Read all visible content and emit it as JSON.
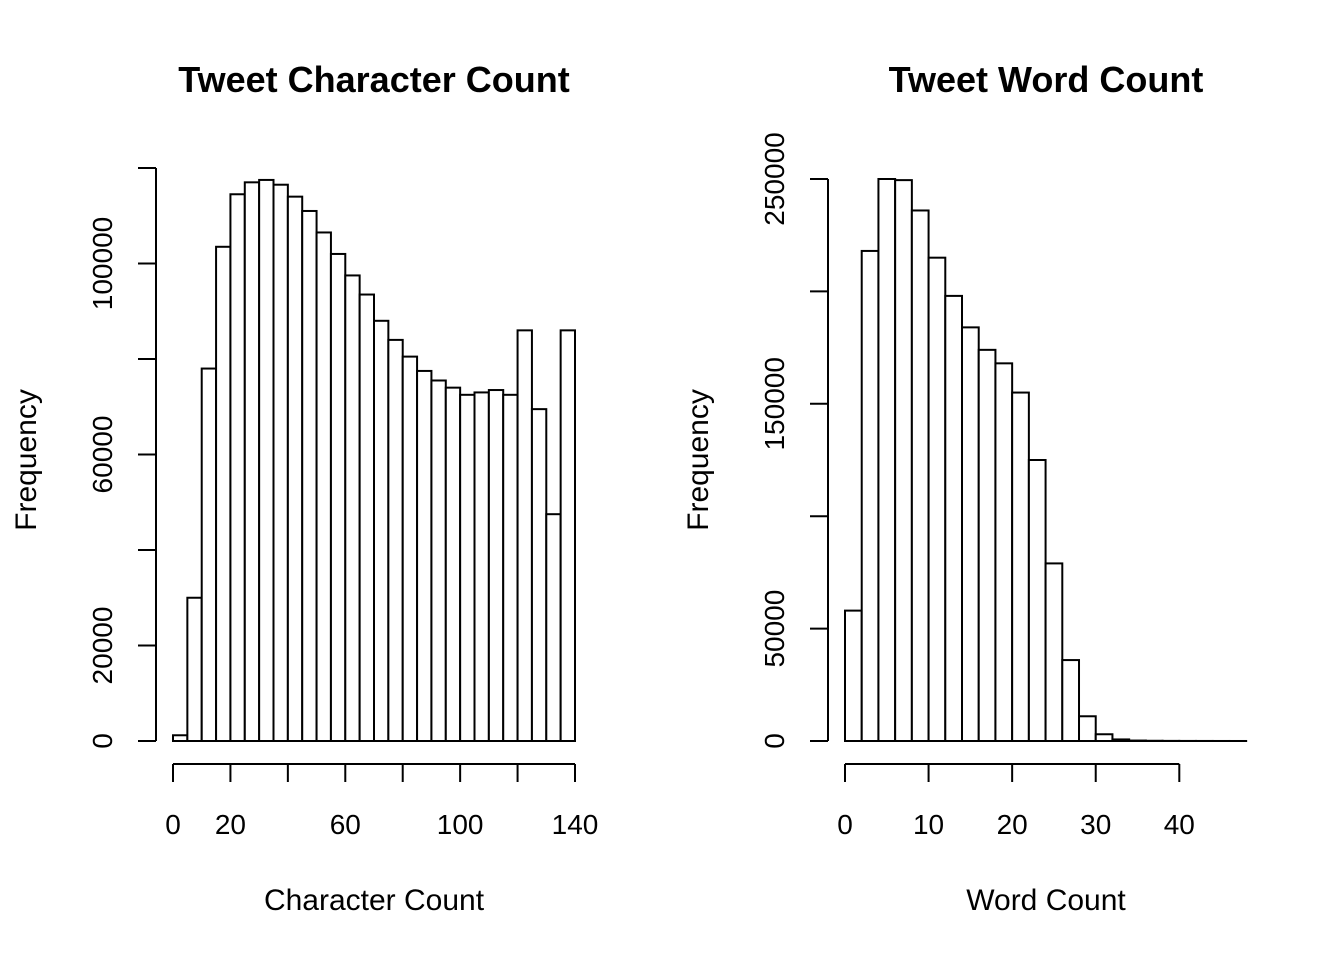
{
  "chart_data": [
    {
      "type": "bar",
      "title": "Tweet Character Count",
      "xlabel": "Character Count",
      "ylabel": "Frequency",
      "bin_width": 5,
      "x": [
        0,
        5,
        10,
        15,
        20,
        25,
        30,
        35,
        40,
        45,
        50,
        55,
        60,
        65,
        70,
        75,
        80,
        85,
        90,
        95,
        100,
        105,
        110,
        115,
        120,
        125,
        130,
        135
      ],
      "values": [
        1200,
        30000,
        78000,
        103500,
        114500,
        117000,
        117500,
        116500,
        114000,
        111000,
        106500,
        102000,
        97500,
        93500,
        88000,
        84000,
        80500,
        77500,
        75500,
        74000,
        72500,
        73000,
        73500,
        72500,
        86000,
        69500,
        47500,
        86000
      ],
      "xlim": [
        0,
        140
      ],
      "ylim": [
        0,
        120000
      ],
      "xticks": [
        0,
        20,
        40,
        60,
        80,
        100,
        120,
        140
      ],
      "xtick_labels": [
        "0",
        "20",
        "",
        "60",
        "",
        "100",
        "",
        "140"
      ],
      "yticks": [
        0,
        20000,
        40000,
        60000,
        80000,
        100000,
        120000
      ],
      "ytick_labels": [
        "0",
        "20000",
        "",
        "60000",
        "",
        "100000",
        ""
      ],
      "grid": false
    },
    {
      "type": "bar",
      "title": "Tweet Word Count",
      "xlabel": "Word Count",
      "ylabel": "Frequency",
      "bin_width": 2,
      "x": [
        0,
        2,
        4,
        6,
        8,
        10,
        12,
        14,
        16,
        18,
        20,
        22,
        24,
        26,
        28,
        30,
        32,
        34,
        36,
        38,
        40,
        42,
        44,
        46
      ],
      "values": [
        58000,
        218000,
        250000,
        249500,
        236000,
        215000,
        198000,
        184000,
        174000,
        168000,
        155000,
        125000,
        79000,
        36000,
        11000,
        3000,
        700,
        200,
        100,
        50,
        30,
        20,
        10,
        5
      ],
      "xlim": [
        0,
        48
      ],
      "ylim": [
        0,
        250000
      ],
      "xticks": [
        0,
        10,
        20,
        30,
        40
      ],
      "xtick_labels": [
        "0",
        "10",
        "20",
        "30",
        "40"
      ],
      "yticks": [
        0,
        50000,
        100000,
        150000,
        200000,
        250000
      ],
      "ytick_labels": [
        "0",
        "50000",
        "",
        "150000",
        "",
        "250000"
      ],
      "grid": false
    }
  ]
}
